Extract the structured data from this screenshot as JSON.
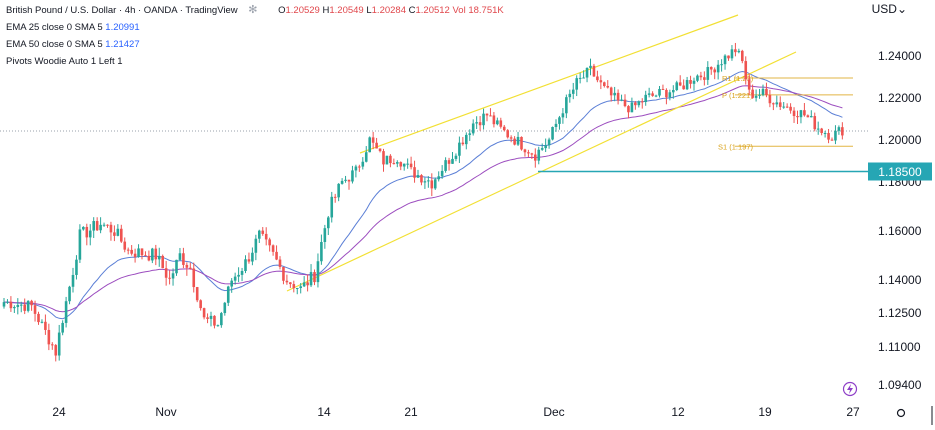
{
  "legend": {
    "title": "British Pound / U.S. Dollar · 4h · OANDA · TradingView",
    "open_label": "O",
    "open": "1.20529",
    "high_label": "H",
    "high": "1.20549",
    "low_label": "L",
    "low": "1.20284",
    "close_label": "C",
    "close": "1.20512",
    "vol": "Vol 18.751K",
    "ema25": "EMA 25 close 0 SMA 5",
    "ema25_value": "1.20991",
    "ema50": "EMA 50 close 0 SMA 5",
    "ema50_value": "1.21427",
    "pivots": "Pivots Woodie Auto 1 Left 1"
  },
  "currency_label": "USD",
  "icons": {
    "settings": "gear-icon",
    "currency_menu": "chevron-down-icon",
    "flash": "lightning-icon",
    "chart_settings": "sun-gear-icon"
  },
  "colors": {
    "up": "#26a69a",
    "down": "#ef5350",
    "ema25": "#5b7fd6",
    "ema50": "#9c4dbf",
    "channel": "#f2e034",
    "pivot": "#e2b544",
    "support": "#26a6b4",
    "price_badge": "#26a6b4"
  },
  "chart_data": {
    "type": "candlestick",
    "y_ticks": [
      "1.24000",
      "1.22000",
      "1.20000",
      "1.18000",
      "1.16000",
      "1.14000",
      "1.12500",
      "1.11000",
      "1.09400"
    ],
    "x_ticks": [
      "24",
      "Nov",
      "14",
      "21",
      "Dec",
      "12",
      "19",
      "27"
    ],
    "price_label": "1.18500",
    "ylim": [
      1.09,
      1.25
    ],
    "pivots": [
      {
        "name": "R1",
        "label": "R1 (1.23)",
        "value": 1.2295
      },
      {
        "name": "P",
        "label": "P (1.221)",
        "value": 1.2215
      },
      {
        "name": "S1",
        "label": "S1 (1.197)",
        "value": 1.197
      }
    ],
    "support_level": 1.185,
    "anchors": [
      [
        0,
        1.13
      ],
      [
        8,
        1.128
      ],
      [
        15,
        1.108
      ],
      [
        18,
        1.13
      ],
      [
        22,
        1.158
      ],
      [
        28,
        1.163
      ],
      [
        32,
        1.16
      ],
      [
        36,
        1.152
      ],
      [
        44,
        1.15
      ],
      [
        48,
        1.14
      ],
      [
        51,
        1.15
      ],
      [
        54,
        1.145
      ],
      [
        58,
        1.122
      ],
      [
        62,
        1.12
      ],
      [
        66,
        1.14
      ],
      [
        70,
        1.147
      ],
      [
        74,
        1.158
      ],
      [
        78,
        1.15
      ],
      [
        82,
        1.14
      ],
      [
        86,
        1.136
      ],
      [
        90,
        1.142
      ],
      [
        94,
        1.168
      ],
      [
        98,
        1.18
      ],
      [
        102,
        1.185
      ],
      [
        106,
        1.2
      ],
      [
        110,
        1.19
      ],
      [
        114,
        1.192
      ],
      [
        118,
        1.185
      ],
      [
        124,
        1.18
      ],
      [
        130,
        1.193
      ],
      [
        136,
        1.208
      ],
      [
        140,
        1.212
      ],
      [
        144,
        1.205
      ],
      [
        150,
        1.198
      ],
      [
        154,
        1.193
      ],
      [
        158,
        1.2
      ],
      [
        162,
        1.215
      ],
      [
        166,
        1.227
      ],
      [
        170,
        1.233
      ],
      [
        174,
        1.224
      ],
      [
        178,
        1.218
      ],
      [
        182,
        1.215
      ],
      [
        186,
        1.22
      ],
      [
        190,
        1.222
      ],
      [
        196,
        1.225
      ],
      [
        200,
        1.23
      ],
      [
        204,
        1.232
      ],
      [
        208,
        1.238
      ],
      [
        212,
        1.243
      ],
      [
        214,
        1.237
      ],
      [
        216,
        1.222
      ],
      [
        220,
        1.222
      ],
      [
        224,
        1.218
      ],
      [
        228,
        1.215
      ],
      [
        232,
        1.212
      ],
      [
        236,
        1.206
      ],
      [
        240,
        1.202
      ],
      [
        243,
        1.205
      ]
    ]
  }
}
